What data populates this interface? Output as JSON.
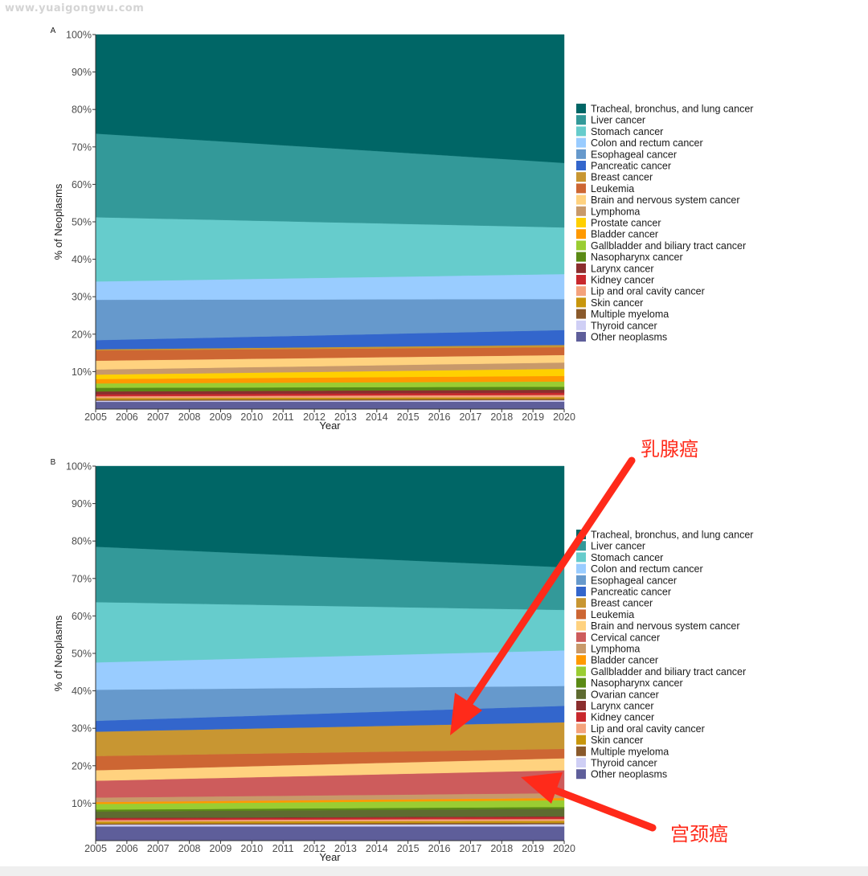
{
  "watermark": "www.yuaigongwu.com",
  "chart_data": [
    {
      "type": "area",
      "panel_label": "A",
      "stacked": true,
      "percent": true,
      "xlabel": "Year",
      "ylabel": "% of Neoplasms",
      "x": [
        2005,
        2006,
        2007,
        2008,
        2009,
        2010,
        2011,
        2012,
        2013,
        2014,
        2015,
        2016,
        2017,
        2018,
        2019,
        2020
      ],
      "x_ticks": [
        "2005",
        "2006",
        "2007",
        "2008",
        "2009",
        "2010",
        "2011",
        "2012",
        "2013",
        "2014",
        "2015",
        "2016",
        "2017",
        "2018",
        "2019",
        "2020"
      ],
      "y_ticks": [
        "10%",
        "20%",
        "30%",
        "40%",
        "50%",
        "60%",
        "70%",
        "80%",
        "90%",
        "100%"
      ],
      "ylim": [
        0,
        100
      ],
      "legend_position": "right",
      "series": [
        {
          "name": "Other neoplasms",
          "color": "#5e5e9a",
          "start": 2.0,
          "end": 2.0
        },
        {
          "name": "Thyroid cancer",
          "color": "#cfcff5",
          "start": 0.3,
          "end": 0.4
        },
        {
          "name": "Multiple myeloma",
          "color": "#8a5a2b",
          "start": 0.3,
          "end": 0.4
        },
        {
          "name": "Skin cancer",
          "color": "#c8960c",
          "start": 0.4,
          "end": 0.4
        },
        {
          "name": "Lip and oral cavity cancer",
          "color": "#f4a27c",
          "start": 0.5,
          "end": 0.6
        },
        {
          "name": "Kidney cancer",
          "color": "#c8282d",
          "start": 0.5,
          "end": 0.6
        },
        {
          "name": "Larynx cancer",
          "color": "#8b2e2e",
          "start": 0.8,
          "end": 0.8
        },
        {
          "name": "Nasopharynx cancer",
          "color": "#5a8a14",
          "start": 1.0,
          "end": 0.8
        },
        {
          "name": "Gallbladder and biliary tract cancer",
          "color": "#9acd32",
          "start": 1.2,
          "end": 1.4
        },
        {
          "name": "Bladder cancer",
          "color": "#ff9900",
          "start": 1.2,
          "end": 1.5
        },
        {
          "name": "Prostate cancer",
          "color": "#ffd000",
          "start": 1.2,
          "end": 1.9
        },
        {
          "name": "Lymphoma",
          "color": "#c8996a",
          "start": 1.4,
          "end": 1.7
        },
        {
          "name": "Brain and nervous system cancer",
          "color": "#ffd27f",
          "start": 2.4,
          "end": 2.0
        },
        {
          "name": "Leukemia",
          "color": "#cd6633",
          "start": 2.8,
          "end": 2.1
        },
        {
          "name": "Breast cancer",
          "color": "#c89632",
          "start": 0.3,
          "end": 0.6
        },
        {
          "name": "Pancreatic cancer",
          "color": "#3366cc",
          "start": 2.5,
          "end": 4.0
        },
        {
          "name": "Esophageal cancer",
          "color": "#6699cc",
          "start": 11.0,
          "end": 8.3
        },
        {
          "name": "Colon and rectum cancer",
          "color": "#99ccff",
          "start": 5.0,
          "end": 6.7
        },
        {
          "name": "Stomach cancer",
          "color": "#66cccc",
          "start": 17.5,
          "end": 12.5
        },
        {
          "name": "Liver cancer",
          "color": "#339999",
          "start": 22.8,
          "end": 17.3
        },
        {
          "name": "Tracheal, bronchus, and lung cancer",
          "color": "#006666",
          "start": 27.0,
          "end": 34.4
        }
      ]
    },
    {
      "type": "area",
      "panel_label": "B",
      "stacked": true,
      "percent": true,
      "xlabel": "Year",
      "ylabel": "% of Neoplasms",
      "x": [
        2005,
        2006,
        2007,
        2008,
        2009,
        2010,
        2011,
        2012,
        2013,
        2014,
        2015,
        2016,
        2017,
        2018,
        2019,
        2020
      ],
      "x_ticks": [
        "2005",
        "2006",
        "2007",
        "2008",
        "2009",
        "2010",
        "2011",
        "2012",
        "2013",
        "2014",
        "2015",
        "2016",
        "2017",
        "2018",
        "2019",
        "2020"
      ],
      "y_ticks": [
        "10%",
        "20%",
        "30%",
        "40%",
        "50%",
        "60%",
        "70%",
        "80%",
        "90%",
        "100%"
      ],
      "ylim": [
        0,
        100
      ],
      "legend_position": "right",
      "series": [
        {
          "name": "Other neoplasms",
          "color": "#5e5e9a",
          "start": 3.8,
          "end": 3.8
        },
        {
          "name": "Thyroid cancer",
          "color": "#cfcff5",
          "start": 0.5,
          "end": 0.6
        },
        {
          "name": "Multiple myeloma",
          "color": "#8a5a2b",
          "start": 0.3,
          "end": 0.4
        },
        {
          "name": "Skin cancer",
          "color": "#c8960c",
          "start": 0.5,
          "end": 0.5
        },
        {
          "name": "Lip and oral cavity cancer",
          "color": "#f4a27c",
          "start": 0.4,
          "end": 0.5
        },
        {
          "name": "Kidney cancer",
          "color": "#c8282d",
          "start": 0.4,
          "end": 0.5
        },
        {
          "name": "Larynx cancer",
          "color": "#8b2e2e",
          "start": 0.2,
          "end": 0.2
        },
        {
          "name": "Ovarian cancer",
          "color": "#5e6b30",
          "start": 1.7,
          "end": 2.0
        },
        {
          "name": "Nasopharynx cancer",
          "color": "#5a8a14",
          "start": 0.5,
          "end": 0.5
        },
        {
          "name": "Gallbladder and biliary tract cancer",
          "color": "#9acd32",
          "start": 1.5,
          "end": 1.8
        },
        {
          "name": "Bladder cancer",
          "color": "#ff9900",
          "start": 0.5,
          "end": 0.6
        },
        {
          "name": "Lymphoma",
          "color": "#c8996a",
          "start": 1.2,
          "end": 1.3
        },
        {
          "name": "Cervical cancer",
          "color": "#cd5c5c",
          "start": 4.5,
          "end": 6.1
        },
        {
          "name": "Brain and nervous system cancer",
          "color": "#ffd27f",
          "start": 2.8,
          "end": 3.2
        },
        {
          "name": "Leukemia",
          "color": "#cd6633",
          "start": 3.8,
          "end": 2.5
        },
        {
          "name": "Breast cancer",
          "color": "#c89632",
          "start": 6.5,
          "end": 7.1
        },
        {
          "name": "Pancreatic cancer",
          "color": "#3366cc",
          "start": 2.9,
          "end": 4.4
        },
        {
          "name": "Esophageal cancer",
          "color": "#6699cc",
          "start": 8.3,
          "end": 5.3
        },
        {
          "name": "Colon and rectum cancer",
          "color": "#99ccff",
          "start": 7.3,
          "end": 9.5
        },
        {
          "name": "Stomach cancer",
          "color": "#66cccc",
          "start": 16.1,
          "end": 10.8
        },
        {
          "name": "Liver cancer",
          "color": "#339999",
          "start": 14.8,
          "end": 11.4
        },
        {
          "name": "Tracheal, bronchus, and lung cancer",
          "color": "#006666",
          "start": 21.5,
          "end": 27.0
        }
      ]
    }
  ],
  "annotations": [
    {
      "text": "乳腺癌",
      "color": "#ff2a1a"
    },
    {
      "text": "宫颈癌",
      "color": "#ff2a1a"
    }
  ]
}
